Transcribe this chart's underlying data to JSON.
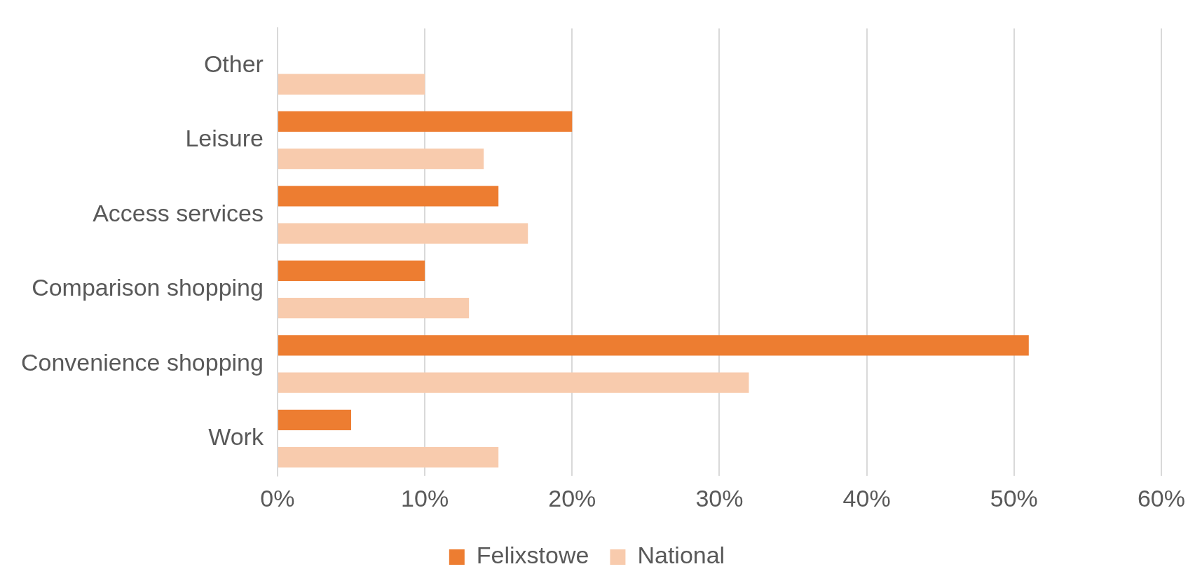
{
  "chart_data": {
    "type": "bar",
    "orientation": "horizontal",
    "categories": [
      "Other",
      "Leisure",
      "Access services",
      "Comparison shopping",
      "Convenience shopping",
      "Work"
    ],
    "series": [
      {
        "name": "Felixstowe",
        "color": "#ed7d31",
        "values": [
          null,
          20,
          15,
          10,
          51,
          5
        ]
      },
      {
        "name": "National",
        "color": "#f8cbad",
        "values": [
          10,
          14,
          17,
          13,
          32,
          15
        ]
      }
    ],
    "xlim": [
      0,
      60
    ],
    "xticks": [
      {
        "value": 0,
        "label": "0%"
      },
      {
        "value": 10,
        "label": "10%"
      },
      {
        "value": 20,
        "label": "20%"
      },
      {
        "value": 30,
        "label": "30%"
      },
      {
        "value": 40,
        "label": "40%"
      },
      {
        "value": 50,
        "label": "50%"
      },
      {
        "value": 60,
        "label": "60%"
      }
    ],
    "grid": "x",
    "legend": "bottom"
  }
}
